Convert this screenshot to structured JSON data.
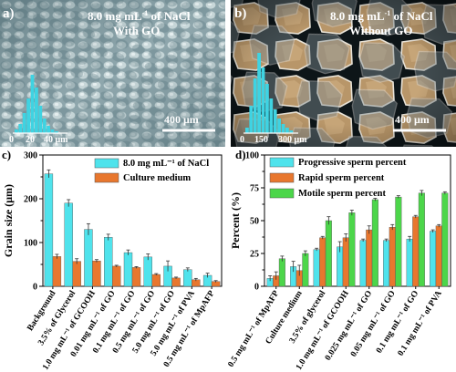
{
  "colors": {
    "cyan": "#4fe3ec",
    "orange": "#e8772e",
    "green": "#4cd64a",
    "hist": "#3fd3e2"
  },
  "panel_a": {
    "letter": "a)",
    "title_line1": "8.0 mg mL",
    "title_sup": "-1",
    "title_line1_end": " of NaCl",
    "title_line2": "With GO",
    "scale": "400 μm",
    "ticks": [
      "0",
      "20",
      "40 μm"
    ]
  },
  "panel_b": {
    "letter": "b)",
    "title_line1": "8.0 mg mL",
    "title_sup": "-1",
    "title_line1_end": " of NaCl",
    "title_line2": "Without GO",
    "scale": "400 μm",
    "ticks": [
      "0",
      "150",
      "300 μm"
    ]
  },
  "chart_data": [
    {
      "panel": "c)",
      "type": "bar",
      "ylabel": "Grain size (μm)",
      "ylim": [
        0,
        300
      ],
      "yticks": [
        0,
        100,
        200,
        300
      ],
      "categories": [
        "Background",
        "3.5% of Glycerol",
        "1.0 mg mL⁻¹ of GCOOH",
        "0.01 mg mL⁻¹ of GO",
        "0.1 mg mL⁻¹ of GO",
        "0.5 mg mL⁻¹ of GO",
        "5.0 mg mL⁻¹ of GO",
        "5.0 mg mL⁻¹ of PVA",
        "0.5 mg mL⁻¹ of MpAFP"
      ],
      "series": [
        {
          "name": "8.0 mg mL⁻¹ of NaCl",
          "color": "#4fe3ec",
          "values": [
            257,
            190,
            130,
            112,
            77,
            67,
            46,
            38,
            25
          ],
          "errors": [
            9,
            8,
            13,
            7,
            6,
            7,
            12,
            4,
            5
          ]
        },
        {
          "name": "Culture medium",
          "color": "#e8772e",
          "values": [
            68,
            57,
            58,
            46,
            43,
            27,
            19,
            15,
            11
          ],
          "errors": [
            5,
            6,
            3,
            2,
            2,
            2,
            2,
            3,
            2
          ]
        }
      ],
      "legend": "top-right"
    },
    {
      "panel": "d)",
      "type": "bar",
      "ylabel": "Percent (%)",
      "ylim": [
        0,
        100
      ],
      "yticks": [
        0,
        25,
        50,
        75,
        100
      ],
      "categories": [
        "0.5 mg mL⁻¹ of MpAFP",
        "Culture medium",
        "3.5% of glycerol",
        "1.0 mg mL⁻¹ of GCOOH",
        "0.025 mg mL⁻¹ of GO",
        "0.05 mg mL⁻¹ of GO",
        "0.1 mg mL⁻¹ of GO",
        "0.1 mg mL⁻¹ of PVA"
      ],
      "series": [
        {
          "name": "Progressive sperm percent",
          "color": "#4fe3ec",
          "values": [
            6,
            15,
            28,
            30,
            35,
            35,
            36,
            42
          ],
          "errors": [
            2,
            4,
            1,
            4,
            1,
            1,
            2,
            1
          ]
        },
        {
          "name": "Rapid sperm percent",
          "color": "#e8772e",
          "values": [
            8,
            12,
            37,
            37,
            43,
            45,
            53,
            46
          ],
          "errors": [
            3,
            4,
            1,
            3,
            3,
            2,
            1,
            1
          ]
        },
        {
          "name": "Motile sperm percent",
          "color": "#4cd64a",
          "values": [
            21,
            25,
            50,
            56,
            66,
            68,
            71,
            71
          ],
          "errors": [
            2,
            2,
            3,
            2,
            1,
            1,
            2,
            1
          ]
        }
      ],
      "legend": "top-left"
    }
  ]
}
